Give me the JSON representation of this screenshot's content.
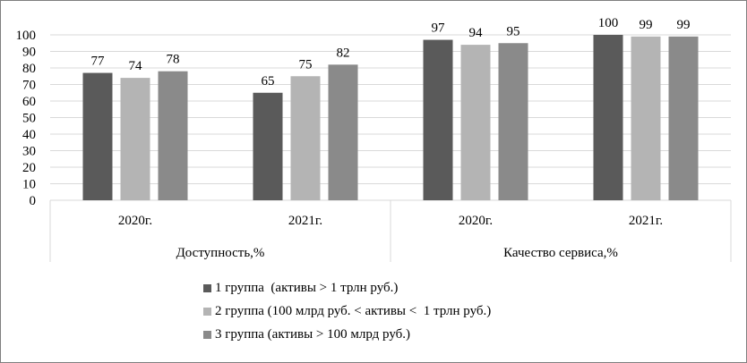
{
  "chart_data": {
    "type": "bar",
    "title": "",
    "xlabel": "",
    "ylabel": "",
    "ylim": [
      0,
      100
    ],
    "yticks": [
      0,
      10,
      20,
      30,
      40,
      50,
      60,
      70,
      80,
      90,
      100
    ],
    "grid": true,
    "legend_position": "bottom",
    "category_groups": [
      {
        "label": "Доступность,%",
        "categories": [
          "2020г.",
          "2021г."
        ]
      },
      {
        "label": "Качество сервиса,%",
        "categories": [
          "2020г.",
          "2021г."
        ]
      }
    ],
    "series": [
      {
        "name": "1 группа  (активы > 1 трлн руб.)",
        "color": "#5a5a5a",
        "values": [
          77,
          65,
          97,
          100
        ]
      },
      {
        "name": "2 группа (100 млрд руб. < активы <  1 трлн руб.)",
        "color": "#b4b4b4",
        "values": [
          74,
          75,
          94,
          99
        ]
      },
      {
        "name": "3 группа (активы > 100 млрд руб.)",
        "color": "#8a8a8a",
        "values": [
          78,
          82,
          95,
          99
        ]
      }
    ]
  }
}
